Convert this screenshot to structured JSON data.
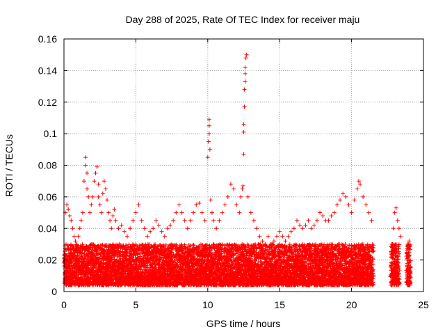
{
  "chart_data": {
    "type": "scatter",
    "title": "Day 288 of 2025, Rate Of TEC Index for receiver maju",
    "xlabel": "GPS time / hours",
    "ylabel": "ROTI / TECUs",
    "xlim": [
      0,
      25
    ],
    "ylim": [
      0,
      0.16
    ],
    "xticks": [
      0,
      5,
      10,
      15,
      20,
      25
    ],
    "yticks": [
      0,
      0.02,
      0.04,
      0.06,
      0.08,
      0.1,
      0.12,
      0.14,
      0.16
    ],
    "xtick_labels": [
      "0",
      "5",
      "10",
      "15",
      "20",
      "25"
    ],
    "ytick_labels": [
      "0",
      "0.02",
      "0.04",
      "0.06",
      "0.08",
      "0.1",
      "0.12",
      "0.14",
      "0.16"
    ],
    "grid": true,
    "marker": "+",
    "color": "#ff0000",
    "series": [
      {
        "name": "ROTI",
        "x": [
          0.1,
          0.2,
          0.3,
          0.4,
          0.5,
          0.6,
          0.7,
          0.8,
          0.9,
          1.0,
          1.1,
          1.2,
          1.3,
          1.4,
          1.5,
          1.5,
          1.6,
          1.6,
          1.7,
          1.8,
          1.9,
          2.0,
          2.1,
          2.2,
          2.3,
          2.4,
          2.4,
          2.5,
          2.6,
          2.7,
          2.8,
          2.9,
          3.0,
          3.1,
          3.2,
          3.3,
          3.4,
          3.5,
          3.6,
          3.8,
          4.0,
          4.2,
          4.4,
          4.6,
          4.8,
          5.0,
          5.2,
          5.4,
          5.6,
          5.8,
          6.0,
          6.2,
          6.4,
          6.6,
          6.8,
          7.0,
          7.2,
          7.4,
          7.6,
          7.8,
          8.0,
          8.2,
          8.4,
          8.6,
          8.8,
          9.0,
          9.2,
          9.4,
          9.6,
          9.8,
          10.0,
          10.05,
          10.1,
          10.1,
          10.1,
          10.15,
          10.2,
          10.3,
          10.4,
          10.6,
          10.8,
          11.0,
          11.2,
          11.4,
          11.6,
          11.8,
          12.0,
          12.2,
          12.3,
          12.4,
          12.45,
          12.5,
          12.5,
          12.5,
          12.55,
          12.55,
          12.6,
          12.6,
          12.6,
          12.65,
          12.7,
          12.8,
          13.0,
          13.2,
          13.4,
          13.6,
          13.8,
          14.0,
          14.2,
          14.4,
          14.6,
          14.8,
          15.0,
          15.2,
          15.4,
          15.6,
          15.8,
          16.0,
          16.2,
          16.4,
          16.6,
          16.8,
          17.0,
          17.2,
          17.4,
          17.6,
          17.8,
          18.0,
          18.2,
          18.4,
          18.6,
          18.8,
          19.0,
          19.2,
          19.4,
          19.6,
          19.8,
          20.0,
          20.2,
          20.4,
          20.5,
          20.6,
          20.8,
          21.0,
          21.2,
          21.4,
          22.8,
          22.9,
          23.0,
          23.1,
          23.2,
          23.3,
          23.4,
          23.9,
          24.0
        ],
        "y": [
          0.05,
          0.055,
          0.052,
          0.048,
          0.045,
          0.04,
          0.035,
          0.032,
          0.03,
          0.035,
          0.04,
          0.045,
          0.05,
          0.07,
          0.08,
          0.085,
          0.075,
          0.065,
          0.06,
          0.05,
          0.055,
          0.06,
          0.07,
          0.075,
          0.079,
          0.068,
          0.06,
          0.055,
          0.05,
          0.062,
          0.07,
          0.065,
          0.058,
          0.05,
          0.045,
          0.04,
          0.048,
          0.052,
          0.045,
          0.04,
          0.042,
          0.038,
          0.035,
          0.04,
          0.045,
          0.05,
          0.055,
          0.045,
          0.04,
          0.035,
          0.038,
          0.04,
          0.045,
          0.042,
          0.038,
          0.035,
          0.04,
          0.042,
          0.045,
          0.05,
          0.055,
          0.05,
          0.045,
          0.04,
          0.045,
          0.05,
          0.055,
          0.056,
          0.05,
          0.045,
          0.085,
          0.095,
          0.1,
          0.105,
          0.109,
          0.09,
          0.058,
          0.05,
          0.045,
          0.04,
          0.045,
          0.05,
          0.055,
          0.06,
          0.068,
          0.065,
          0.055,
          0.05,
          0.06,
          0.065,
          0.067,
          0.087,
          0.101,
          0.106,
          0.117,
          0.128,
          0.133,
          0.138,
          0.142,
          0.148,
          0.15,
          0.06,
          0.05,
          0.045,
          0.04,
          0.035,
          0.032,
          0.03,
          0.035,
          0.03,
          0.032,
          0.035,
          0.038,
          0.035,
          0.032,
          0.035,
          0.038,
          0.04,
          0.045,
          0.042,
          0.04,
          0.042,
          0.045,
          0.04,
          0.042,
          0.045,
          0.05,
          0.048,
          0.045,
          0.045,
          0.048,
          0.05,
          0.055,
          0.058,
          0.062,
          0.06,
          0.055,
          0.05,
          0.058,
          0.065,
          0.07,
          0.068,
          0.06,
          0.055,
          0.05,
          0.045,
          0.03,
          0.04,
          0.05,
          0.053,
          0.045,
          0.04,
          0.035,
          0.03,
          0.032
        ]
      }
    ],
    "background_band": {
      "description": "dense noise floor of many points",
      "ymin": 0.004,
      "ymax": 0.03,
      "segments": [
        [
          0,
          21.5
        ],
        [
          22.7,
          23.3
        ],
        [
          23.8,
          24.1
        ]
      ]
    }
  }
}
